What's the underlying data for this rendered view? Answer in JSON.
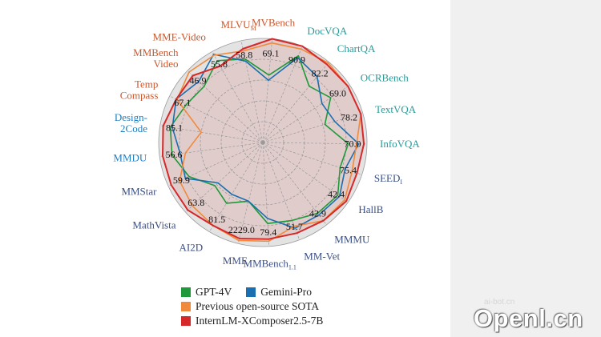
{
  "chart_data": {
    "type": "radar",
    "title": "",
    "colors": {
      "grid": "#9a9a9a",
      "background_fill": "#e3e3e3",
      "label_orange": "#d0562a",
      "label_teal": "#2a9a9a",
      "label_blue": "#1f7fc0",
      "label_navy": "#3a4f85"
    },
    "axes": [
      {
        "id": "mvbench",
        "name": "MVBench",
        "value_label": "69.1",
        "label_color": "#d0562a"
      },
      {
        "id": "docvqa",
        "name": "DocVQA",
        "value_label": "90.9",
        "label_color": "#2a9a9a"
      },
      {
        "id": "chartqa",
        "name": "ChartQA",
        "value_label": "82.2",
        "label_color": "#2a9a9a"
      },
      {
        "id": "ocrbench",
        "name": "OCRBench",
        "value_label": "69.0",
        "label_color": "#2a9a9a"
      },
      {
        "id": "textvqa",
        "name": "TextVQA",
        "value_label": "78.2",
        "label_color": "#2a9a9a"
      },
      {
        "id": "infovqa",
        "name": "InfoVQA",
        "value_label": "70.0",
        "label_color": "#2a9a9a"
      },
      {
        "id": "seed",
        "name": "SEED",
        "sub": "I",
        "value_label": "75.4",
        "label_color": "#3a4f85"
      },
      {
        "id": "hallb",
        "name": "HallB",
        "value_label": "42.4",
        "label_color": "#3a4f85"
      },
      {
        "id": "mmmu",
        "name": "MMMU",
        "value_label": "42.9",
        "label_color": "#3a4f85"
      },
      {
        "id": "mmvet",
        "name": "MM-Vet",
        "value_label": "51.7",
        "label_color": "#3a4f85"
      },
      {
        "id": "mmbench11",
        "name": "MMBench",
        "sub": "1.1",
        "value_label": "79.4",
        "label_color": "#3a4f85"
      },
      {
        "id": "mme",
        "name": "MME",
        "value_label": "2229.0",
        "label_color": "#3a4f85"
      },
      {
        "id": "ai2d",
        "name": "AI2D",
        "value_label": "81.5",
        "label_color": "#3a4f85"
      },
      {
        "id": "mathvista",
        "name": "MathVista",
        "value_label": "63.8",
        "label_color": "#3a4f85"
      },
      {
        "id": "mmstar",
        "name": "MMStar",
        "value_label": "59.9",
        "label_color": "#3a4f85"
      },
      {
        "id": "mmdu",
        "name": "MMDU",
        "value_label": "56.6",
        "label_color": "#1f7fc0"
      },
      {
        "id": "design2code",
        "name": "Design-",
        "name2": "2Code",
        "value_label": "85.1",
        "label_color": "#1f7fc0"
      },
      {
        "id": "tempcompass",
        "name": "Temp",
        "name2": "Compass",
        "value_label": "67.1",
        "label_color": "#d0562a"
      },
      {
        "id": "mmbenchvideo",
        "name": "MMBench",
        "name2": "Video",
        "value_label": "46.9",
        "label_color": "#d0562a"
      },
      {
        "id": "mmevideo",
        "name": "MME-Video",
        "value_label": "55.8",
        "label_color": "#d0562a"
      },
      {
        "id": "mlvu",
        "name": "MLVU",
        "sub": "M",
        "value_label": "58.8",
        "label_color": "#d0562a"
      }
    ],
    "range": [
      0,
      1
    ],
    "grid_levels": [
      0.2,
      0.4,
      0.6,
      0.8,
      1.0
    ],
    "series": [
      {
        "name": "InternLM-XComposer2.5-7B",
        "color": "#d62828",
        "fill": true,
        "values": [
          1.0,
          1.0,
          0.97,
          0.98,
          0.98,
          0.97,
          0.95,
          0.98,
          0.95,
          0.93,
          0.93,
          0.95,
          0.93,
          0.97,
          0.97,
          0.97,
          0.97,
          0.93,
          0.93,
          0.84,
          0.92
        ]
      },
      {
        "name": "Previous open-source SOTA",
        "color": "#f08a3c",
        "fill": false,
        "values": [
          0.96,
          0.97,
          0.99,
          0.98,
          0.98,
          0.9,
          0.9,
          0.96,
          0.95,
          0.86,
          0.95,
          0.97,
          0.93,
          0.91,
          0.88,
          0.75,
          0.6,
          0.92,
          0.98,
          0.96,
          0.9
        ]
      },
      {
        "name": "GPT-4V",
        "color": "#1f9a3a",
        "fill": false,
        "values": [
          0.65,
          0.9,
          0.7,
          0.78,
          0.62,
          0.82,
          0.78,
          0.88,
          0.86,
          0.8,
          0.78,
          0.58,
          0.68,
          0.62,
          0.78,
          0.88,
          0.9,
          0.82,
          0.78,
          0.9,
          0.82
        ]
      },
      {
        "name": "Gemini-Pro",
        "color": "#1a6fb0",
        "fill": false,
        "values": [
          0.6,
          0.88,
          0.82,
          0.68,
          0.72,
          0.92,
          0.83,
          0.9,
          0.88,
          0.88,
          0.73,
          0.58,
          0.58,
          0.58,
          0.82,
          0.8,
          0.88,
          0.93,
          0.85,
          0.97,
          0.8
        ]
      }
    ],
    "legend": {
      "placement": "bottom",
      "rows": [
        [
          {
            "label": "GPT-4V",
            "color": "#1f9a3a"
          },
          {
            "label": "Gemini-Pro",
            "color": "#1a6fb0"
          }
        ],
        [
          {
            "label": "Previous open-source SOTA",
            "color": "#f08a3c"
          }
        ],
        [
          {
            "label": "InternLM-XComposer2.5-7B",
            "color": "#d62828"
          }
        ]
      ]
    }
  },
  "watermark": {
    "text": "Openl.cn",
    "faint_text": "ai-bot.cn"
  }
}
